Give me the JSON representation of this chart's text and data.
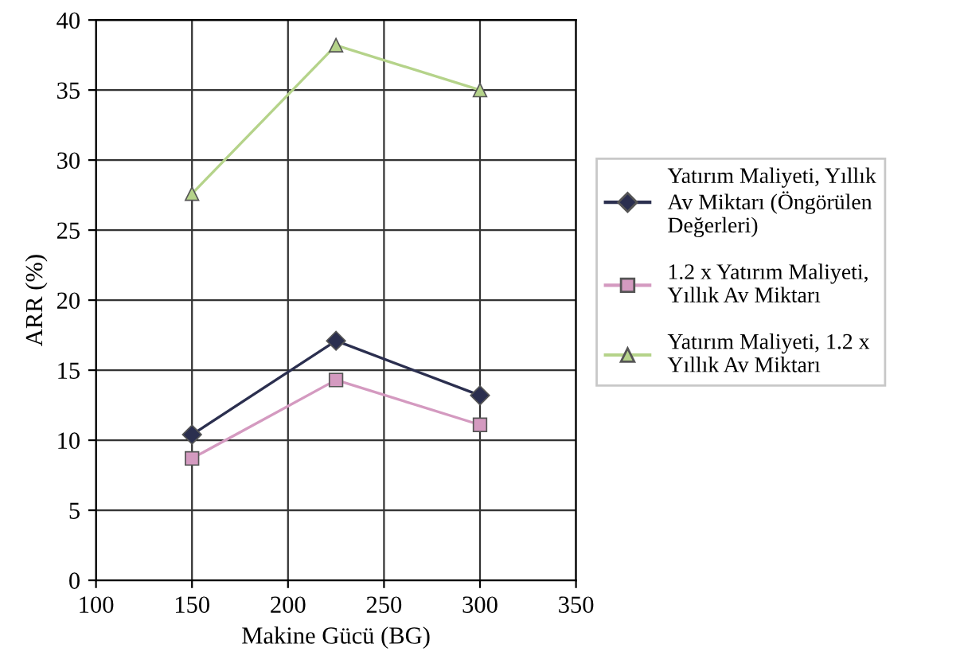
{
  "chart_data": {
    "type": "line",
    "xlabel": "Makine Gücü (BG)",
    "ylabel": "ARR (%)",
    "x": [
      150,
      225,
      300
    ],
    "series": [
      {
        "name": "Yatırım Maliyeti, Yıllık Av Miktarı (Öngörülen Değerleri)",
        "color": "#2b2f4f",
        "marker": "diamond",
        "values": [
          10.4,
          17.1,
          13.2
        ]
      },
      {
        "name": "1.2 x Yatırım Maliyeti, Yıllık Av Miktarı",
        "color": "#d49ac0",
        "marker": "square",
        "values": [
          8.7,
          14.3,
          11.1
        ]
      },
      {
        "name": "Yatırım Maliyeti, 1.2 x Yıllık Av Miktarı",
        "color": "#b5d38a",
        "marker": "triangle",
        "values": [
          27.6,
          38.2,
          35.0
        ]
      }
    ],
    "xlim": [
      100,
      350
    ],
    "xticks": [
      100,
      150,
      200,
      250,
      300,
      350
    ],
    "ylim": [
      0,
      40
    ],
    "yticks": [
      0,
      5,
      10,
      15,
      20,
      25,
      30,
      35,
      40
    ],
    "grid": true,
    "legend": "right",
    "line_style": "solid"
  }
}
